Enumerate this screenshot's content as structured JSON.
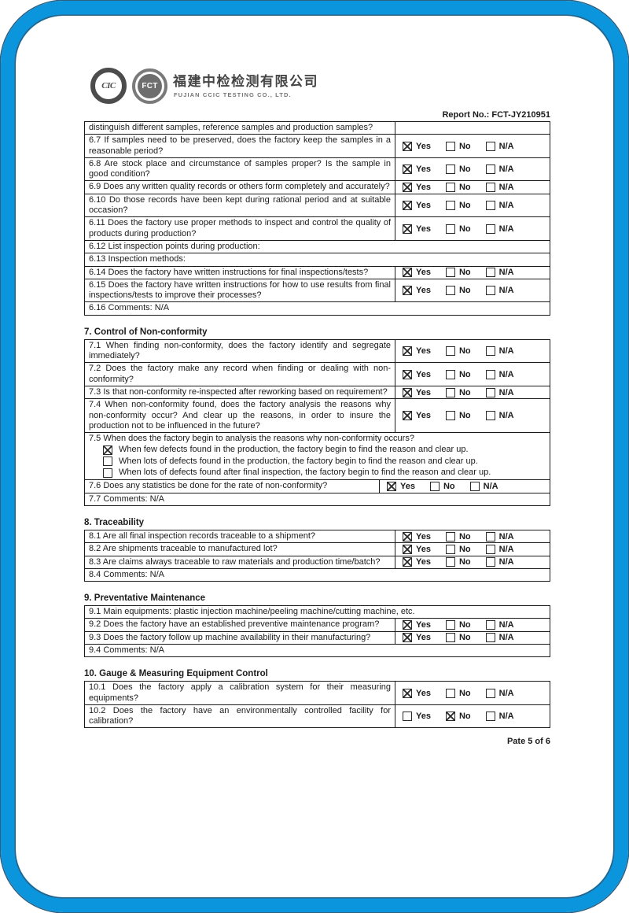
{
  "header": {
    "logo_cic": "CIC",
    "logo_fct": "FCT",
    "company_cn": "福建中检检测有限公司",
    "company_en": "FUJIAN CCIC TESTING CO., LTD.",
    "report_no": "Report No.: FCT-JY210951"
  },
  "labels": {
    "yes": "Yes",
    "no": "No",
    "na": "N/A"
  },
  "sections": [
    {
      "title": "",
      "rows": [
        {
          "type": "qa-empty",
          "text": "distinguish different samples, reference samples and production samples?"
        },
        {
          "type": "qa",
          "text": "6.7 If samples need to be preserved, does the factory keep the samples in a reasonable period?",
          "answer": {
            "yes": true,
            "no": false,
            "na": false
          }
        },
        {
          "type": "qa",
          "text": "6.8 Are stock place and circumstance of samples proper? Is the sample in good condition?",
          "answer": {
            "yes": true,
            "no": false,
            "na": false
          }
        },
        {
          "type": "qa",
          "text": "6.9 Does any written quality records or others form completely and accurately?",
          "answer": {
            "yes": true,
            "no": false,
            "na": false
          }
        },
        {
          "type": "qa",
          "text": "6.10 Do those records have been kept during rational period and at suitable occasion?",
          "answer": {
            "yes": true,
            "no": false,
            "na": false
          }
        },
        {
          "type": "qa",
          "text": "6.11 Does the factory use proper methods to inspect and control the quality of products during production?",
          "answer": {
            "yes": true,
            "no": false,
            "na": false
          }
        },
        {
          "type": "full",
          "text": "6.12 List inspection points during production:"
        },
        {
          "type": "full",
          "text": "6.13 Inspection methods:"
        },
        {
          "type": "qa",
          "text": "6.14 Does the factory have written instructions for final inspections/tests?",
          "answer": {
            "yes": true,
            "no": false,
            "na": false
          }
        },
        {
          "type": "qa",
          "text": "6.15 Does the factory have written instructions for how to use results from final inspections/tests to improve their processes?",
          "answer": {
            "yes": true,
            "no": false,
            "na": false
          }
        },
        {
          "type": "full",
          "text": "6.16 Comments: N/A"
        }
      ]
    },
    {
      "title": "7. Control of Non-conformity",
      "rows": [
        {
          "type": "qa",
          "text": "7.1 When finding non-conformity, does the factory identify and segregate immediately?",
          "answer": {
            "yes": true,
            "no": false,
            "na": false
          }
        },
        {
          "type": "qa",
          "text": "7.2 Does the factory make any record when finding or dealing with non-conformity?",
          "answer": {
            "yes": true,
            "no": false,
            "na": false
          }
        },
        {
          "type": "qa",
          "text": "7.3 Is that non-conformity re-inspected after reworking based on requirement?",
          "answer": {
            "yes": true,
            "no": false,
            "na": false
          }
        },
        {
          "type": "qa",
          "text": "7.4 When non-conformity found, does the factory analysis the reasons why non-conformity occur? And clear up the reasons, in order to insure the production not to be influenced in the future?",
          "answer": {
            "yes": true,
            "no": false,
            "na": false
          }
        },
        {
          "type": "options",
          "text": "7.5 When does the factory begin to analysis the reasons why non-conformity occurs?",
          "options": [
            {
              "label": "When few defects found in the production, the factory begin to find the reason and clear up.",
              "checked": true
            },
            {
              "label": "When lots of defects found in the production, the factory begin to find the reason and clear up.",
              "checked": false
            },
            {
              "label": "When lots of defects found after final inspection, the factory begin to find the reason and clear up.",
              "checked": false
            }
          ]
        },
        {
          "type": "qa-wide",
          "text": "7.6 Does any statistics be done for the rate of non-conformity?",
          "answer": {
            "yes": true,
            "no": false,
            "na": false
          }
        },
        {
          "type": "full",
          "text": "7.7 Comments: N/A"
        }
      ]
    },
    {
      "title": "8. Traceability",
      "rows": [
        {
          "type": "qa",
          "text": "8.1 Are all final inspection records traceable to a shipment?",
          "answer": {
            "yes": true,
            "no": false,
            "na": false
          }
        },
        {
          "type": "qa",
          "text": "8.2 Are shipments traceable to manufactured lot?",
          "answer": {
            "yes": true,
            "no": false,
            "na": false
          }
        },
        {
          "type": "qa",
          "text": "8.3 Are claims always traceable to raw materials and production time/batch?",
          "answer": {
            "yes": true,
            "no": false,
            "na": false
          }
        },
        {
          "type": "full",
          "text": "8.4 Comments: N/A"
        }
      ]
    },
    {
      "title": "9. Preventative Maintenance",
      "rows": [
        {
          "type": "full",
          "text": "9.1 Main equipments: plastic injection machine/peeling machine/cutting machine, etc."
        },
        {
          "type": "qa",
          "text": "9.2 Does the factory have an established preventive maintenance program?",
          "answer": {
            "yes": true,
            "no": false,
            "na": false
          }
        },
        {
          "type": "qa",
          "text": "9.3 Does the factory follow up machine availability in their manufacturing?",
          "answer": {
            "yes": true,
            "no": false,
            "na": false
          }
        },
        {
          "type": "full",
          "text": "9.4 Comments: N/A"
        }
      ]
    },
    {
      "title": "10. Gauge & Measuring Equipment Control",
      "rows": [
        {
          "type": "qa",
          "text": "10.1 Does the factory apply a calibration system for their measuring equipments?",
          "answer": {
            "yes": true,
            "no": false,
            "na": false
          }
        },
        {
          "type": "qa",
          "text": "10.2 Does the factory have an environmentally controlled facility for calibration?",
          "answer": {
            "yes": false,
            "no": true,
            "na": false
          }
        }
      ]
    }
  ],
  "footer": {
    "page_label": "Pate 5 of 6"
  }
}
